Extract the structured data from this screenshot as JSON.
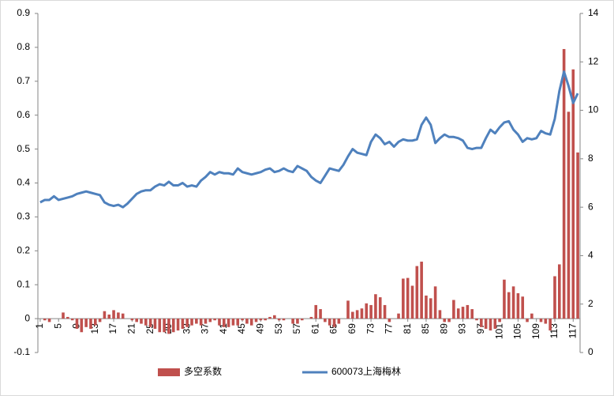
{
  "chart_data": {
    "type": "bar_line",
    "categories": [
      1,
      null,
      null,
      null,
      5,
      null,
      null,
      null,
      9,
      null,
      null,
      null,
      13,
      null,
      null,
      null,
      17,
      null,
      null,
      null,
      21,
      null,
      null,
      null,
      25,
      null,
      null,
      null,
      29,
      null,
      null,
      null,
      33,
      null,
      null,
      null,
      37,
      null,
      null,
      null,
      41,
      null,
      null,
      null,
      45,
      null,
      null,
      null,
      49,
      null,
      null,
      null,
      53,
      null,
      null,
      null,
      57,
      null,
      null,
      null,
      61,
      null,
      null,
      null,
      65,
      null,
      null,
      null,
      69,
      null,
      null,
      null,
      73,
      null,
      null,
      null,
      77,
      null,
      null,
      null,
      81,
      null,
      null,
      null,
      85,
      null,
      null,
      null,
      89,
      null,
      null,
      null,
      93,
      null,
      null,
      null,
      97,
      null,
      null,
      null,
      101,
      null,
      null,
      null,
      105,
      null,
      null,
      null,
      109,
      null,
      null,
      null,
      113,
      null,
      null,
      null,
      117,
      null
    ],
    "series": [
      {
        "name": "多空系数",
        "type": "bar",
        "color": "#c0504d",
        "values": [
          0,
          -0.005,
          -0.01,
          0,
          0,
          0.018,
          0.005,
          -0.005,
          -0.03,
          -0.04,
          -0.025,
          -0.03,
          -0.02,
          -0.01,
          0.022,
          0.012,
          0.025,
          0.018,
          0.015,
          0,
          -0.005,
          -0.01,
          -0.015,
          -0.02,
          -0.025,
          -0.03,
          -0.04,
          -0.04,
          -0.045,
          -0.04,
          -0.035,
          -0.03,
          -0.025,
          -0.02,
          -0.015,
          -0.02,
          -0.015,
          -0.01,
          -0.005,
          -0.02,
          -0.025,
          -0.025,
          -0.02,
          -0.02,
          -0.005,
          -0.015,
          -0.02,
          -0.01,
          -0.005,
          -0.005,
          0.005,
          0.01,
          -0.005,
          -0.005,
          0,
          -0.015,
          -0.015,
          -0.005,
          0,
          0.005,
          0.04,
          0.028,
          -0.01,
          -0.02,
          -0.025,
          -0.015,
          0,
          0.053,
          0.02,
          0.025,
          0.03,
          0.045,
          0.04,
          0.072,
          0.063,
          0.04,
          -0.01,
          0,
          0.015,
          0.118,
          0.12,
          0.097,
          0.155,
          0.168,
          0.068,
          0.06,
          0.095,
          0.025,
          -0.01,
          -0.01,
          0.055,
          0.03,
          0.035,
          0.04,
          0.028,
          -0.005,
          -0.025,
          -0.03,
          -0.035,
          -0.03,
          -0.01,
          0.115,
          0.078,
          0.095,
          0.075,
          0.065,
          -0.01,
          0.015,
          0,
          -0.01,
          -0.015,
          -0.035,
          0.125,
          0.16,
          0.795,
          0.61,
          0.735,
          0.49
        ]
      },
      {
        "name": "600073上海梅林",
        "type": "line",
        "axis": "y2",
        "color": "#4f81bd",
        "values": [
          6.2,
          6.3,
          6.3,
          6.45,
          6.3,
          6.35,
          6.4,
          6.45,
          6.55,
          6.6,
          6.65,
          6.6,
          6.55,
          6.5,
          6.2,
          6.1,
          6.05,
          6.1,
          6.0,
          6.15,
          6.35,
          6.55,
          6.65,
          6.7,
          6.7,
          6.85,
          6.95,
          6.9,
          7.05,
          6.9,
          6.9,
          7.0,
          6.85,
          6.9,
          6.85,
          7.1,
          7.25,
          7.45,
          7.35,
          7.45,
          7.4,
          7.4,
          7.35,
          7.6,
          7.45,
          7.4,
          7.35,
          7.4,
          7.45,
          7.55,
          7.6,
          7.45,
          7.5,
          7.6,
          7.5,
          7.45,
          7.7,
          7.6,
          7.5,
          7.25,
          7.1,
          7.0,
          7.3,
          7.6,
          7.55,
          7.5,
          7.75,
          8.1,
          8.4,
          8.25,
          8.2,
          8.15,
          8.7,
          9.0,
          8.85,
          8.6,
          8.7,
          8.5,
          8.7,
          8.8,
          8.75,
          8.75,
          8.8,
          9.4,
          9.7,
          9.4,
          8.65,
          8.85,
          9.0,
          8.9,
          8.9,
          8.85,
          8.75,
          8.45,
          8.4,
          8.45,
          8.45,
          8.85,
          9.2,
          9.05,
          9.3,
          9.5,
          9.55,
          9.2,
          9.0,
          8.7,
          8.85,
          8.8,
          8.85,
          9.15,
          9.05,
          9.0,
          9.65,
          10.8,
          11.6,
          11.0,
          10.3,
          10.7
        ]
      }
    ],
    "ylim": [
      -0.1,
      0.9
    ],
    "yticks": [
      -0.1,
      0,
      0.1,
      0.2,
      0.3,
      0.4,
      0.5,
      0.6,
      0.7,
      0.8,
      0.9
    ],
    "y2lim": [
      0,
      14
    ],
    "y2ticks": [
      0,
      2,
      4,
      6,
      8,
      10,
      12,
      14
    ],
    "legend": "bottom"
  }
}
